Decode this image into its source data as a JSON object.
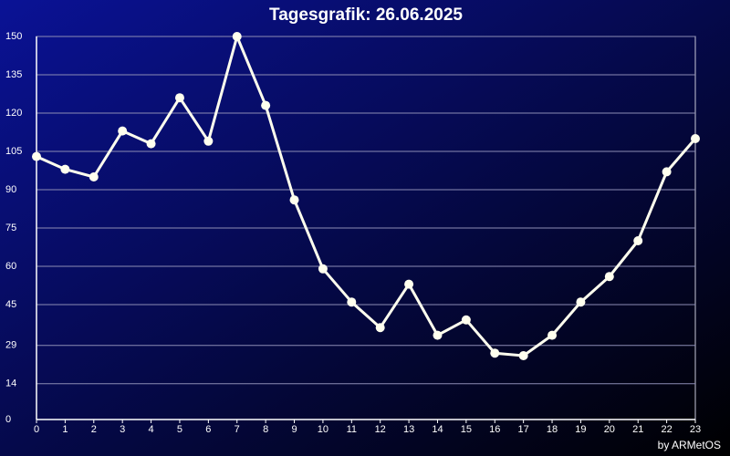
{
  "chart_data": {
    "type": "line",
    "title": "Tagesgrafik: 26.06.2025",
    "credit": "by ARMetOS",
    "x": [
      0,
      1,
      2,
      3,
      4,
      5,
      6,
      7,
      8,
      9,
      10,
      11,
      12,
      13,
      14,
      15,
      16,
      17,
      18,
      19,
      20,
      21,
      22,
      23
    ],
    "series": [
      {
        "color": "#ffffee",
        "values": [
          103,
          98,
          95,
          113,
          108,
          126,
          109,
          150,
          123,
          86,
          59,
          46,
          36,
          53,
          33,
          39,
          26,
          25,
          33,
          46,
          56,
          70,
          97,
          110
        ]
      }
    ],
    "xlim": [
      0,
      23
    ],
    "xticks": [
      0,
      1,
      2,
      3,
      4,
      5,
      6,
      7,
      8,
      9,
      10,
      11,
      12,
      13,
      14,
      15,
      16,
      17,
      18,
      19,
      20,
      21,
      22,
      23
    ],
    "ylim": [
      0,
      150
    ],
    "yticks": [
      0,
      14,
      29,
      45,
      60,
      75,
      90,
      105,
      120,
      135,
      150
    ],
    "grid": true
  }
}
